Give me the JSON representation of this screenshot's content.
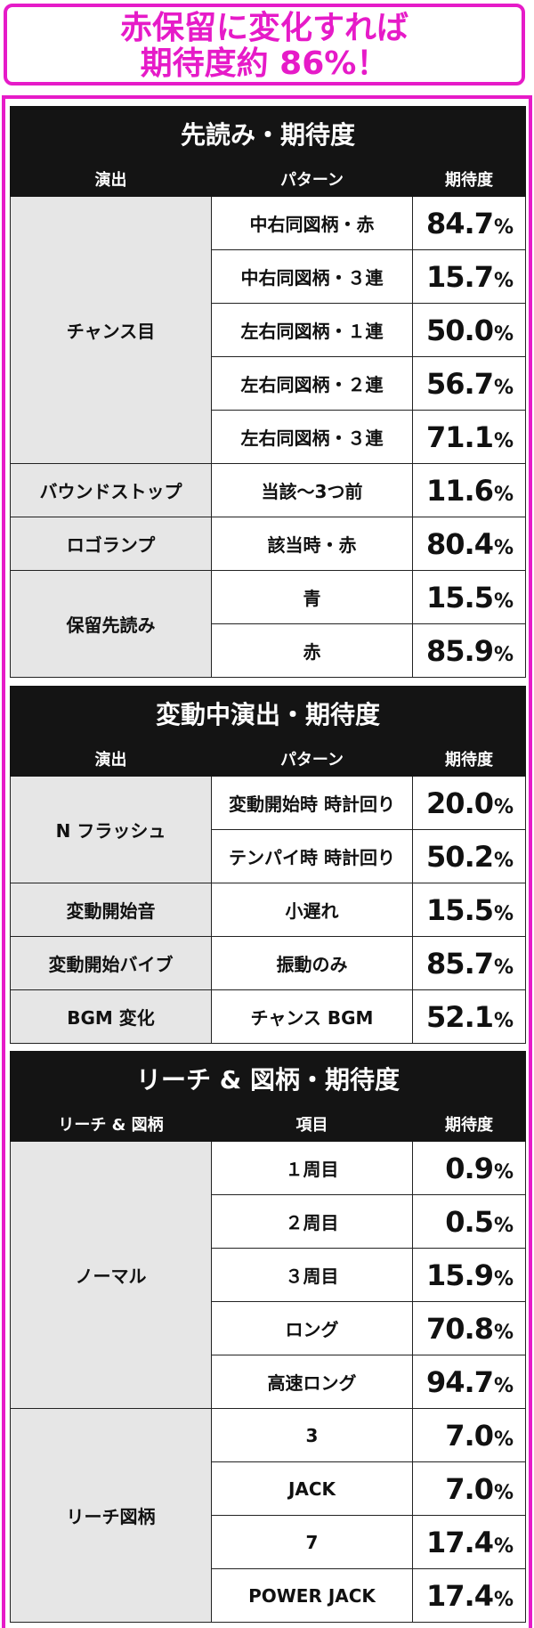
{
  "headline": {
    "line1": "赤保留に変化すれば",
    "line2": "期待度約 86%！"
  },
  "tables": [
    {
      "title": "先読み・期待度",
      "headers": [
        "演出",
        "パターン",
        "期待度"
      ],
      "rows": [
        {
          "label": "チャンス目",
          "pattern": "中右同図柄・赤",
          "value": "84.7"
        },
        {
          "pattern": "中右同図柄・３連",
          "value": "15.7"
        },
        {
          "pattern": "左右同図柄・１連",
          "value": "50.0"
        },
        {
          "pattern": "左右同図柄・２連",
          "value": "56.7"
        },
        {
          "pattern": "左右同図柄・３連",
          "value": "71.1"
        },
        {
          "label": "バウンドストップ",
          "pattern": "当該～3つ前",
          "value": "11.6"
        },
        {
          "label": "ロゴランプ",
          "pattern": "該当時・赤",
          "value": "80.4"
        },
        {
          "label": "保留先読み",
          "pattern": "青",
          "value": "15.5"
        },
        {
          "pattern": "赤",
          "value": "85.9"
        }
      ]
    },
    {
      "title": "変動中演出・期待度",
      "headers": [
        "演出",
        "パターン",
        "期待度"
      ],
      "rows": [
        {
          "label": "N フラッシュ",
          "pattern": "変動開始時 時計回り",
          "value": "20.0"
        },
        {
          "pattern": "テンパイ時 時計回り",
          "value": "50.2"
        },
        {
          "label": "変動開始音",
          "pattern": "小遅れ",
          "value": "15.5"
        },
        {
          "label": "変動開始バイブ",
          "pattern": "振動のみ",
          "value": "85.7"
        },
        {
          "label": "BGM 変化",
          "pattern": "チャンス BGM",
          "value": "52.1"
        }
      ]
    },
    {
      "title": "リーチ & 図柄・期待度",
      "headers": [
        "リーチ & 図柄",
        "項目",
        "期待度"
      ],
      "rows": [
        {
          "label": "ノーマル",
          "pattern": "１周目",
          "value": "0.9"
        },
        {
          "pattern": "２周目",
          "value": "0.5"
        },
        {
          "pattern": "３周目",
          "value": "15.9"
        },
        {
          "pattern": "ロング",
          "value": "70.8"
        },
        {
          "pattern": "高速ロング",
          "value": "94.7"
        },
        {
          "label": "リーチ図柄",
          "pattern": "3",
          "value": "7.0"
        },
        {
          "pattern": "JACK",
          "value": "7.0"
        },
        {
          "pattern": "7",
          "value": "17.4"
        },
        {
          "pattern": "POWER JACK",
          "value": "17.4"
        }
      ]
    }
  ],
  "percent_sign": "%",
  "colors": {
    "frame": "#e61bc8",
    "header_bg": "#141414",
    "label_bg": "#e6e6e6"
  }
}
